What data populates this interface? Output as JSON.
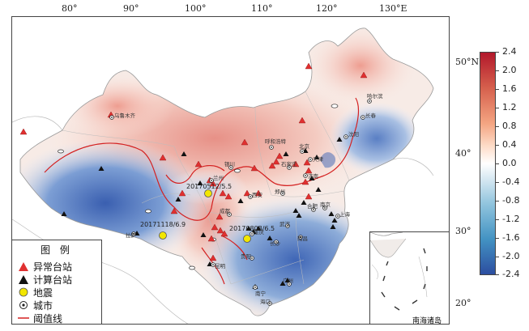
{
  "axes": {
    "longitude_ticks": [
      "80°",
      "90°",
      "100°",
      "110°",
      "120°",
      "130°E"
    ],
    "latitude_ticks": [
      "50°N",
      "40°",
      "30°",
      "20°"
    ]
  },
  "legend": {
    "title": "图 例",
    "items": [
      {
        "label": "异常台站",
        "symbol": "red-triangle"
      },
      {
        "label": "计算台站",
        "symbol": "black-triangle"
      },
      {
        "label": "地震",
        "symbol": "yellow-circle"
      },
      {
        "label": "城市",
        "symbol": "city-dot"
      },
      {
        "label": "阈值线",
        "symbol": "red-line"
      }
    ]
  },
  "colorbar": {
    "labels": [
      "2.4",
      "2.0",
      "1.6",
      "1.2",
      "0.8",
      "0.4",
      "0.0",
      "-0.4",
      "-0.8",
      "-1.2",
      "-1.6",
      "-2.0",
      "-2.4"
    ]
  },
  "earthquakes": [
    {
      "label": "20171118/6.9"
    },
    {
      "label": "20170808/6.5"
    },
    {
      "label": "20170512/5.5"
    }
  ],
  "cities": [
    {
      "name": "乌鲁木齐"
    },
    {
      "name": "哈尔滨"
    },
    {
      "name": "长春"
    },
    {
      "name": "沈阳"
    },
    {
      "name": "呼和浩特"
    },
    {
      "name": "北京"
    },
    {
      "name": "天津"
    },
    {
      "name": "石家庄"
    },
    {
      "name": "济南"
    },
    {
      "name": "银川"
    },
    {
      "name": "兰州"
    },
    {
      "name": "西安"
    },
    {
      "name": "郑州"
    },
    {
      "name": "合肥"
    },
    {
      "name": "南京"
    },
    {
      "name": "上海"
    },
    {
      "name": "武汉"
    },
    {
      "name": "成都"
    },
    {
      "name": "重庆"
    },
    {
      "name": "长沙"
    },
    {
      "name": "南昌"
    },
    {
      "name": "贵阳"
    },
    {
      "name": "昆明"
    },
    {
      "name": "南宁"
    },
    {
      "name": "广州"
    },
    {
      "name": "海口"
    },
    {
      "name": "拉萨"
    }
  ],
  "inset": {
    "caption": "南海诸岛"
  },
  "colors": {
    "anomaly": "#e03030",
    "compute": "#111111",
    "quake": "#f2e600",
    "threshold": "#d42020"
  }
}
